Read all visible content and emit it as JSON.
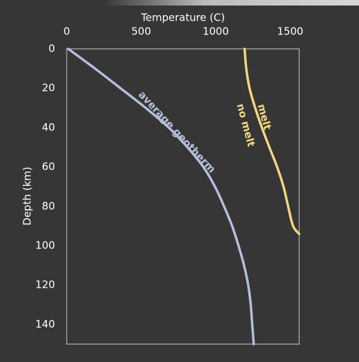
{
  "chart_data": {
    "type": "line",
    "x_label": "Temperature (C)",
    "y_label": "Depth (km)",
    "xlim": [
      0,
      1560
    ],
    "xticks": [
      0,
      500,
      1000,
      1500
    ],
    "ylim": [
      0,
      150
    ],
    "yticks": [
      0,
      20,
      40,
      60,
      80,
      100,
      120,
      140
    ],
    "y_inverted": true,
    "series": [
      {
        "name": "average geotherm",
        "color": "#b4c0dc",
        "x": [
          10,
          190,
          361,
          530,
          685,
          810,
          917,
          995,
          1056,
          1110,
          1153,
          1190,
          1218,
          1235,
          1245,
          1255
        ],
        "y": [
          0,
          10,
          20,
          30,
          40,
          50,
          60,
          70,
          80,
          90,
          100,
          110,
          120,
          130,
          140,
          150
        ]
      },
      {
        "color": "#f3d77f",
        "x": [
          1194,
          1205,
          1227,
          1265,
          1310,
          1360,
          1412,
          1455,
          1486,
          1519,
          1560
        ],
        "y": [
          0,
          10,
          20,
          30,
          40,
          50,
          60,
          70,
          80,
          90,
          94
        ]
      }
    ],
    "annotations": [
      {
        "text": "melt",
        "color": "#f3d77f"
      },
      {
        "text": "no melt",
        "color": "#f3d77f"
      }
    ]
  }
}
